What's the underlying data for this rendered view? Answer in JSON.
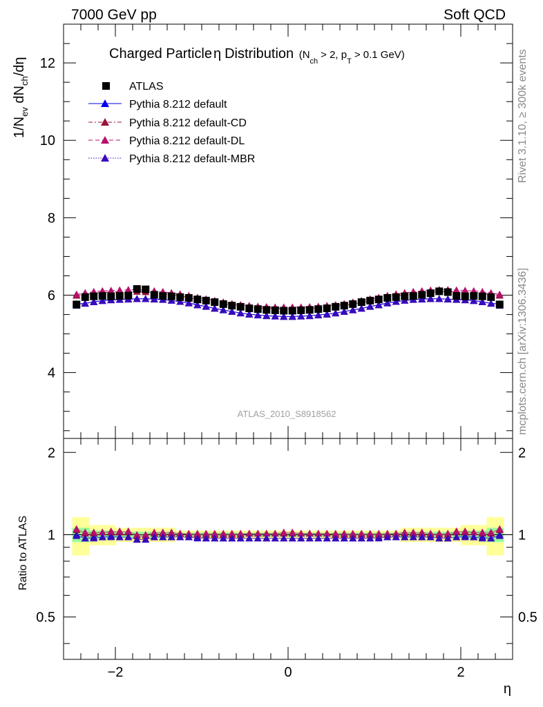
{
  "header": {
    "energy_label": "7000 GeV pp",
    "process_label": "Soft QCD"
  },
  "side_text": {
    "rivet": "Rivet 3.1.10, ≥ 300k events",
    "source": "mcplots.cern.ch [arXiv:1306.3436]"
  },
  "chart_data": [
    {
      "type": "scatter",
      "title": "Charged Particle",
      "title_symbol": "η",
      "title_suffix": "Distribution",
      "title_cuts": "(N",
      "title_cuts_sub": "ch",
      "title_cuts_mid": "> 2, p",
      "title_cuts_sub2": "T",
      "title_cuts_end": "> 0.1 GeV)",
      "analysis_id": "ATLAS_2010_S8918562",
      "ylabel_parts": [
        "1/N",
        "ev",
        " dN",
        "ch",
        "/dη"
      ],
      "ylim": [
        2.3,
        13.0
      ],
      "yticks": [
        4,
        6,
        8,
        10,
        12
      ],
      "xlim": [
        -2.6,
        2.6
      ],
      "xticks": [
        -2,
        0,
        2
      ],
      "x": [
        -2.45,
        -2.35,
        -2.25,
        -2.15,
        -2.05,
        -1.95,
        -1.85,
        -1.75,
        -1.65,
        -1.55,
        -1.45,
        -1.35,
        -1.25,
        -1.15,
        -1.05,
        -0.95,
        -0.85,
        -0.75,
        -0.65,
        -0.55,
        -0.45,
        -0.35,
        -0.25,
        -0.15,
        -0.05,
        0.05,
        0.15,
        0.25,
        0.35,
        0.45,
        0.55,
        0.65,
        0.75,
        0.85,
        0.95,
        1.05,
        1.15,
        1.25,
        1.35,
        1.45,
        1.55,
        1.65,
        1.75,
        1.85,
        1.95,
        2.05,
        2.15,
        2.25,
        2.35,
        2.45
      ],
      "legend_position": "top-left",
      "series": [
        {
          "name": "ATLAS",
          "marker": "square",
          "color": "#000000",
          "values": [
            5.76,
            5.95,
            5.97,
            5.98,
            5.97,
            5.98,
            5.99,
            6.16,
            6.15,
            6.01,
            5.98,
            5.97,
            5.95,
            5.93,
            5.89,
            5.86,
            5.82,
            5.77,
            5.73,
            5.7,
            5.66,
            5.64,
            5.62,
            5.61,
            5.6,
            5.6,
            5.61,
            5.62,
            5.64,
            5.66,
            5.7,
            5.73,
            5.77,
            5.82,
            5.86,
            5.89,
            5.93,
            5.95,
            5.97,
            5.98,
            6.01,
            6.05,
            6.1,
            6.08,
            5.98,
            5.97,
            5.98,
            5.97,
            5.95,
            5.76
          ]
        },
        {
          "name": "Pythia 8.212 default",
          "marker": "triangle",
          "line": "solid",
          "color": "#0000ee",
          "values": [
            5.77,
            5.79,
            5.83,
            5.86,
            5.88,
            5.89,
            5.9,
            5.91,
            5.91,
            5.9,
            5.89,
            5.86,
            5.83,
            5.8,
            5.75,
            5.71,
            5.66,
            5.62,
            5.58,
            5.54,
            5.51,
            5.49,
            5.47,
            5.46,
            5.45,
            5.45,
            5.46,
            5.47,
            5.49,
            5.51,
            5.54,
            5.58,
            5.62,
            5.66,
            5.71,
            5.75,
            5.8,
            5.83,
            5.86,
            5.89,
            5.9,
            5.91,
            5.91,
            5.9,
            5.89,
            5.88,
            5.86,
            5.83,
            5.79,
            5.77
          ]
        },
        {
          "name": "Pythia 8.212 default-CD",
          "marker": "triangle",
          "line": "dashdot",
          "color": "#9b1236",
          "values": [
            5.99,
            6.02,
            6.05,
            6.07,
            6.08,
            6.09,
            6.09,
            6.09,
            6.08,
            6.06,
            6.04,
            6.01,
            5.98,
            5.94,
            5.89,
            5.85,
            5.81,
            5.77,
            5.74,
            5.71,
            5.69,
            5.67,
            5.66,
            5.66,
            5.65,
            5.65,
            5.66,
            5.66,
            5.67,
            5.69,
            5.71,
            5.74,
            5.77,
            5.81,
            5.85,
            5.89,
            5.94,
            5.98,
            6.01,
            6.04,
            6.06,
            6.08,
            6.09,
            6.09,
            6.09,
            6.08,
            6.07,
            6.05,
            6.02,
            5.99
          ]
        },
        {
          "name": "Pythia 8.212 default-DL",
          "marker": "triangle",
          "line": "dashed",
          "color": "#b5106b",
          "values": [
            6.02,
            6.06,
            6.09,
            6.11,
            6.12,
            6.13,
            6.14,
            6.14,
            6.13,
            6.11,
            6.09,
            6.06,
            6.03,
            5.99,
            5.94,
            5.9,
            5.86,
            5.82,
            5.78,
            5.75,
            5.73,
            5.71,
            5.7,
            5.69,
            5.69,
            5.69,
            5.69,
            5.7,
            5.71,
            5.73,
            5.75,
            5.78,
            5.82,
            5.86,
            5.9,
            5.94,
            5.99,
            6.03,
            6.06,
            6.09,
            6.11,
            6.13,
            6.14,
            6.14,
            6.13,
            6.12,
            6.11,
            6.09,
            6.06,
            6.02
          ]
        },
        {
          "name": "Pythia 8.212 default-MBR",
          "marker": "triangle",
          "line": "dotted",
          "color": "#3a0ab8",
          "values": [
            5.73,
            5.78,
            5.82,
            5.85,
            5.87,
            5.88,
            5.89,
            5.9,
            5.9,
            5.89,
            5.88,
            5.86,
            5.83,
            5.79,
            5.74,
            5.7,
            5.65,
            5.61,
            5.57,
            5.53,
            5.5,
            5.48,
            5.46,
            5.45,
            5.44,
            5.44,
            5.45,
            5.46,
            5.48,
            5.5,
            5.53,
            5.57,
            5.61,
            5.65,
            5.7,
            5.74,
            5.79,
            5.83,
            5.86,
            5.88,
            5.89,
            5.9,
            5.9,
            5.89,
            5.88,
            5.87,
            5.85,
            5.82,
            5.78,
            5.73
          ]
        }
      ]
    },
    {
      "type": "scatter",
      "ylabel": "Ratio to ATLAS",
      "xlabel": "η",
      "ylim": [
        0.35,
        2.25
      ],
      "yticks": [
        0.5,
        1,
        2
      ],
      "ytick_labels": [
        "0.5",
        "1",
        "2"
      ],
      "xlim": [
        -2.6,
        2.6
      ],
      "xticks": [
        -2,
        0,
        2
      ],
      "xtick_labels": [
        "−2",
        "0",
        "2"
      ],
      "reference_line": 1,
      "bands": {
        "edges": [
          -2.5,
          -2.3,
          -2.0,
          -1.3,
          1.3,
          2.0,
          2.3,
          2.5
        ],
        "inner": [
          0.06,
          0.035,
          0.025,
          0.018,
          0.025,
          0.035,
          0.06
        ],
        "outer": [
          0.16,
          0.085,
          0.06,
          0.035,
          0.06,
          0.085,
          0.16
        ],
        "inner_color": "#99ff99",
        "outer_color": "#ffff99"
      },
      "series": [
        {
          "name": "Pythia 8.212 default",
          "color": "#0000ee",
          "values": [
            1.0,
            0.97,
            0.98,
            0.98,
            0.99,
            0.98,
            0.98,
            0.96,
            0.96,
            0.98,
            0.98,
            0.98,
            0.98,
            0.98,
            0.98,
            0.97,
            0.97,
            0.97,
            0.97,
            0.97,
            0.97,
            0.97,
            0.97,
            0.97,
            0.97,
            0.97,
            0.97,
            0.97,
            0.97,
            0.97,
            0.97,
            0.97,
            0.97,
            0.97,
            0.97,
            0.98,
            0.98,
            0.98,
            0.98,
            0.98,
            0.98,
            0.98,
            0.97,
            0.97,
            0.98,
            0.99,
            0.98,
            0.98,
            0.97,
            1.0
          ]
        },
        {
          "name": "Pythia 8.212 default-CD",
          "color": "#9b1236",
          "values": [
            1.04,
            1.01,
            1.01,
            1.02,
            1.02,
            1.02,
            1.02,
            0.99,
            0.99,
            1.01,
            1.01,
            1.01,
            1.01,
            1.0,
            1.0,
            1.0,
            1.0,
            1.0,
            1.0,
            1.0,
            1.01,
            1.01,
            1.01,
            1.01,
            1.01,
            1.01,
            1.01,
            1.01,
            1.01,
            1.01,
            1.0,
            1.0,
            1.0,
            1.0,
            1.0,
            1.0,
            1.0,
            1.01,
            1.01,
            1.01,
            1.01,
            1.0,
            1.0,
            1.0,
            1.02,
            1.02,
            1.02,
            1.01,
            1.01,
            1.04
          ]
        },
        {
          "name": "Pythia 8.212 default-DL",
          "color": "#b5106b",
          "values": [
            1.05,
            1.02,
            1.02,
            1.02,
            1.03,
            1.03,
            1.03,
            1.0,
            1.0,
            1.02,
            1.02,
            1.02,
            1.01,
            1.01,
            1.01,
            1.01,
            1.01,
            1.01,
            1.01,
            1.01,
            1.01,
            1.01,
            1.01,
            1.01,
            1.02,
            1.02,
            1.01,
            1.01,
            1.01,
            1.01,
            1.01,
            1.01,
            1.01,
            1.01,
            1.01,
            1.01,
            1.01,
            1.01,
            1.02,
            1.02,
            1.02,
            1.01,
            1.01,
            1.01,
            1.03,
            1.03,
            1.02,
            1.02,
            1.02,
            1.05
          ]
        },
        {
          "name": "Pythia 8.212 default-MBR",
          "color": "#3a0ab8",
          "values": [
            0.99,
            0.97,
            0.97,
            0.98,
            0.98,
            0.98,
            0.98,
            0.96,
            0.96,
            0.98,
            0.98,
            0.98,
            0.98,
            0.98,
            0.97,
            0.97,
            0.97,
            0.97,
            0.97,
            0.97,
            0.97,
            0.97,
            0.97,
            0.97,
            0.97,
            0.97,
            0.97,
            0.97,
            0.97,
            0.97,
            0.97,
            0.97,
            0.97,
            0.97,
            0.97,
            0.97,
            0.98,
            0.98,
            0.98,
            0.98,
            0.98,
            0.98,
            0.97,
            0.97,
            0.98,
            0.98,
            0.98,
            0.97,
            0.97,
            0.99
          ]
        }
      ]
    }
  ]
}
